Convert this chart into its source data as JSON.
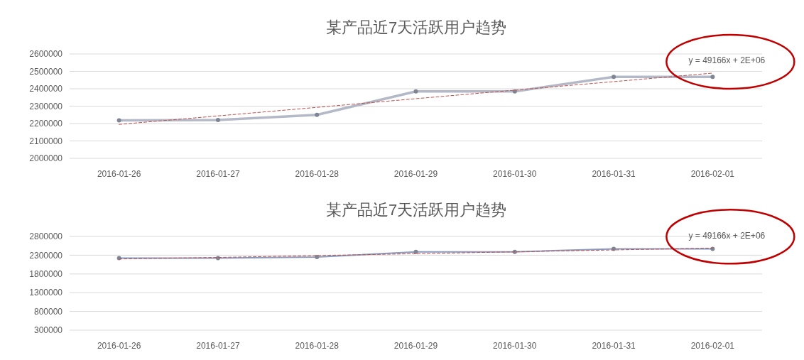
{
  "chart_data": [
    {
      "type": "line",
      "title": "某产品近7天活跃用户趋势",
      "categories": [
        "2016-01-26",
        "2016-01-27",
        "2016-01-28",
        "2016-01-29",
        "2016-01-30",
        "2016-01-31",
        "2016-02-01"
      ],
      "series": [
        {
          "color": "#b4b9c8",
          "values": [
            2218000,
            2220000,
            2250000,
            2385000,
            2385000,
            2468000,
            2468000
          ],
          "marker": "circle"
        },
        {
          "type": "line",
          "color": "#c0504d",
          "line_style": "dashed",
          "values": [
            2195000,
            2244000,
            2293000,
            2343000,
            2392000,
            2441000,
            2490000
          ]
        }
      ],
      "ylim": [
        2000000,
        2600000
      ],
      "yticks": [
        2000000,
        2100000,
        2200000,
        2300000,
        2400000,
        2500000,
        2600000
      ],
      "grid": "y",
      "annotations": [
        {
          "text": "y = 49166x + 2E+06",
          "x": "2016-02-01",
          "y": 2490000
        }
      ]
    },
    {
      "type": "line",
      "title": "某产品近7天活跃用户趋势",
      "categories": [
        "2016-01-26",
        "2016-01-27",
        "2016-01-28",
        "2016-01-29",
        "2016-01-30",
        "2016-01-31",
        "2016-02-01"
      ],
      "series": [
        {
          "color": "#8a9bc0",
          "values": [
            2220000,
            2220000,
            2250000,
            2390000,
            2390000,
            2470000,
            2470000
          ],
          "marker": "circle"
        },
        {
          "type": "line",
          "color": "#c0504d",
          "line_style": "dashed",
          "values": [
            2200000,
            2240000,
            2290000,
            2340000,
            2390000,
            2440000,
            2490000
          ]
        }
      ],
      "ylim": [
        300000,
        2800000
      ],
      "yticks": [
        300000,
        800000,
        1300000,
        1800000,
        2300000,
        2800000
      ],
      "grid": "y",
      "annotations": [
        {
          "text": "y = 49166x + 2E+06",
          "x": "2016-02-01",
          "y": 2490000
        }
      ]
    }
  ]
}
